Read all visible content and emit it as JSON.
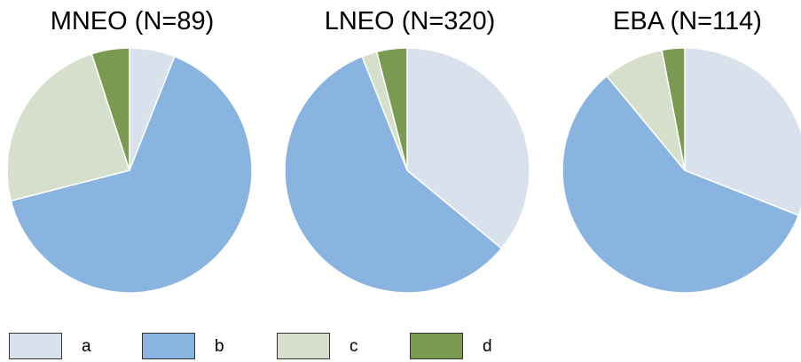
{
  "colors": {
    "a": "#d9e2ec",
    "b": "#88b4df",
    "c": "#d6dfcc",
    "d": "#7a9a52",
    "edge": "#ffffff"
  },
  "legend": {
    "items": [
      {
        "key": "a",
        "label": "a"
      },
      {
        "key": "b",
        "label": "b"
      },
      {
        "key": "c",
        "label": "c"
      },
      {
        "key": "d",
        "label": "d"
      }
    ]
  },
  "chart_data": [
    {
      "type": "pie",
      "title": "MNEO (N=89)",
      "slices": [
        {
          "label": "a",
          "value": 6
        },
        {
          "label": "b",
          "value": 65
        },
        {
          "label": "c",
          "value": 24
        },
        {
          "label": "d",
          "value": 5
        }
      ]
    },
    {
      "type": "pie",
      "title": "LNEO (N=320)",
      "slices": [
        {
          "label": "a",
          "value": 36
        },
        {
          "label": "b",
          "value": 58
        },
        {
          "label": "c",
          "value": 2
        },
        {
          "label": "d",
          "value": 4
        }
      ]
    },
    {
      "type": "pie",
      "title": "EBA (N=114)",
      "slices": [
        {
          "label": "a",
          "value": 31
        },
        {
          "label": "b",
          "value": 58
        },
        {
          "label": "c",
          "value": 8
        },
        {
          "label": "d",
          "value": 3
        }
      ]
    }
  ]
}
